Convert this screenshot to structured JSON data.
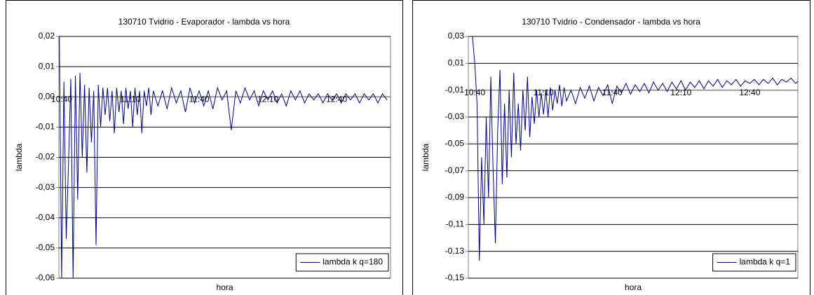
{
  "chart_data": [
    {
      "type": "line",
      "title": "130710 Tvidrio - Evaporador -  lambda vs hora",
      "x_label": "hora",
      "y_label": "lambda",
      "xlim": [
        638.8,
        783.5
      ],
      "ylim": [
        -0.06,
        0.02
      ],
      "x_axis_crosses": 0,
      "xticks": [
        {
          "value": 640,
          "label": "10:40"
        },
        {
          "value": 670,
          "label": "11:10"
        },
        {
          "value": 700,
          "label": "11:40"
        },
        {
          "value": 730,
          "label": "12:10"
        },
        {
          "value": 760,
          "label": "12:40"
        }
      ],
      "yticks": [
        {
          "value": 0.02,
          "label": "0,02"
        },
        {
          "value": 0.01,
          "label": "0,01"
        },
        {
          "value": 0,
          "label": "0,00"
        },
        {
          "value": -0.01,
          "label": "-0,01"
        },
        {
          "value": -0.02,
          "label": "-0,02"
        },
        {
          "value": -0.03,
          "label": "-0,03"
        },
        {
          "value": -0.04,
          "label": "-0,04"
        },
        {
          "value": -0.05,
          "label": "-0,05"
        },
        {
          "value": -0.06,
          "label": "-0,06"
        }
      ],
      "grid": true,
      "legend": "lower right",
      "x": [
        639,
        640,
        641,
        642,
        643,
        644,
        645,
        646,
        647,
        648,
        649,
        650,
        651,
        652,
        653,
        654,
        655,
        656,
        657,
        658,
        659,
        660,
        661,
        662,
        663,
        664,
        665,
        666,
        667,
        668,
        669,
        670,
        671,
        672,
        673,
        674,
        675,
        676,
        677,
        678,
        679,
        680,
        682,
        684,
        686,
        688,
        690,
        692,
        694,
        696,
        698,
        700,
        702,
        704,
        706,
        708,
        710,
        712,
        714,
        716,
        718,
        720,
        722,
        724,
        726,
        728,
        730,
        732,
        734,
        736,
        738,
        740,
        742,
        744,
        746,
        748,
        750,
        752,
        754,
        756,
        758,
        760,
        762,
        764,
        766,
        768,
        770,
        772,
        774,
        776,
        778,
        780,
        782
      ],
      "series": [
        {
          "name": "lambda k q=180",
          "color": "#000080",
          "values": [
            0.02,
            -0.06,
            0.005,
            -0.047,
            -0.022,
            0.006,
            -0.06,
            0.007,
            -0.034,
            0.008,
            -0.02,
            0.004,
            -0.025,
            0.003,
            -0.015,
            0.002,
            -0.049,
            0.004,
            -0.01,
            0.003,
            -0.006,
            0.003,
            -0.008,
            0.002,
            -0.012,
            0.003,
            -0.005,
            0.002,
            -0.009,
            0.003,
            -0.004,
            0.002,
            -0.01,
            0.003,
            -0.006,
            0.002,
            -0.012,
            0.002,
            -0.003,
            0.003,
            -0.006,
            0.002,
            -0.003,
            0.002,
            -0.004,
            0.003,
            -0.002,
            0.002,
            -0.005,
            0.003,
            -0.002,
            0.002,
            -0.003,
            0.002,
            -0.004,
            0.003,
            -0.001,
            0.002,
            -0.011,
            0.002,
            -0.002,
            0.003,
            -0.001,
            0.002,
            -0.003,
            0.002,
            -0.001,
            0.002,
            -0.002,
            0.001,
            -0.003,
            0.002,
            -0.001,
            0.002,
            -0.002,
            0.001,
            -0.001,
            0.001,
            -0.002,
            0.001,
            -0.001,
            0.001,
            -0.002,
            0.001,
            -0.001,
            0.001,
            -0.002,
            0.001,
            -0.001,
            0.001,
            -0.002,
            0.001,
            -0.001
          ]
        }
      ]
    },
    {
      "type": "line",
      "title": "130710 Tvidrio - Condensador -  lambda vs hora",
      "x_label": "hora",
      "y_label": "lambda",
      "xlim": [
        637.2,
        781
      ],
      "ylim": [
        -0.15,
        0.03
      ],
      "x_axis_crosses": -0.01,
      "xticks": [
        {
          "value": 640,
          "label": "10:40"
        },
        {
          "value": 670,
          "label": "11:10"
        },
        {
          "value": 700,
          "label": "11:40"
        },
        {
          "value": 730,
          "label": "12:10"
        },
        {
          "value": 760,
          "label": "12:40"
        }
      ],
      "yticks": [
        {
          "value": 0.03,
          "label": "0,03"
        },
        {
          "value": 0.01,
          "label": "0,01"
        },
        {
          "value": -0.01,
          "label": "-0,01"
        },
        {
          "value": -0.03,
          "label": "-0,03"
        },
        {
          "value": -0.05,
          "label": "-0,05"
        },
        {
          "value": -0.07,
          "label": "-0,07"
        },
        {
          "value": -0.09,
          "label": "-0,09"
        },
        {
          "value": -0.11,
          "label": "-0,11"
        },
        {
          "value": -0.13,
          "label": "-0,13"
        },
        {
          "value": -0.15,
          "label": "-0,15"
        }
      ],
      "grid": true,
      "legend": "lower right",
      "x": [
        639,
        640,
        641,
        642,
        643,
        644,
        645,
        646,
        647,
        648,
        649,
        650,
        651,
        652,
        653,
        654,
        655,
        656,
        657,
        658,
        659,
        660,
        661,
        662,
        663,
        664,
        665,
        666,
        667,
        668,
        669,
        670,
        671,
        672,
        673,
        674,
        675,
        676,
        677,
        678,
        679,
        680,
        682,
        684,
        686,
        688,
        690,
        692,
        694,
        696,
        698,
        700,
        702,
        704,
        706,
        708,
        710,
        712,
        714,
        716,
        718,
        720,
        722,
        724,
        726,
        728,
        730,
        732,
        734,
        736,
        738,
        740,
        742,
        744,
        746,
        748,
        750,
        752,
        754,
        756,
        758,
        760,
        762,
        764,
        766,
        768,
        770,
        772,
        774,
        776,
        778,
        780,
        782
      ],
      "series": [
        {
          "name": "lambda k q=1",
          "color": "#000080",
          "values": [
            0.03,
            0.01,
            -0.02,
            -0.137,
            -0.06,
            -0.11,
            -0.03,
            -0.09,
            0.0,
            -0.07,
            -0.124,
            -0.04,
            0.005,
            -0.08,
            -0.02,
            -0.075,
            -0.01,
            -0.06,
            0.003,
            -0.05,
            -0.02,
            -0.055,
            -0.01,
            -0.04,
            0.0,
            -0.045,
            -0.015,
            -0.035,
            -0.01,
            -0.03,
            -0.012,
            -0.028,
            -0.01,
            -0.03,
            -0.008,
            -0.025,
            -0.01,
            -0.02,
            -0.006,
            -0.022,
            -0.008,
            -0.018,
            -0.01,
            -0.02,
            -0.008,
            -0.016,
            -0.007,
            -0.018,
            -0.008,
            -0.014,
            -0.006,
            -0.02,
            -0.007,
            -0.012,
            -0.005,
            -0.013,
            -0.006,
            -0.011,
            -0.005,
            -0.012,
            -0.004,
            -0.01,
            -0.005,
            -0.011,
            -0.004,
            -0.009,
            -0.003,
            -0.01,
            -0.004,
            -0.008,
            -0.003,
            -0.009,
            -0.003,
            -0.007,
            -0.002,
            -0.008,
            -0.003,
            -0.006,
            -0.002,
            -0.007,
            -0.003,
            -0.005,
            -0.002,
            -0.006,
            -0.002,
            -0.005,
            -0.001,
            -0.006,
            -0.002,
            -0.004,
            -0.001,
            -0.005,
            -0.002
          ]
        }
      ]
    }
  ]
}
